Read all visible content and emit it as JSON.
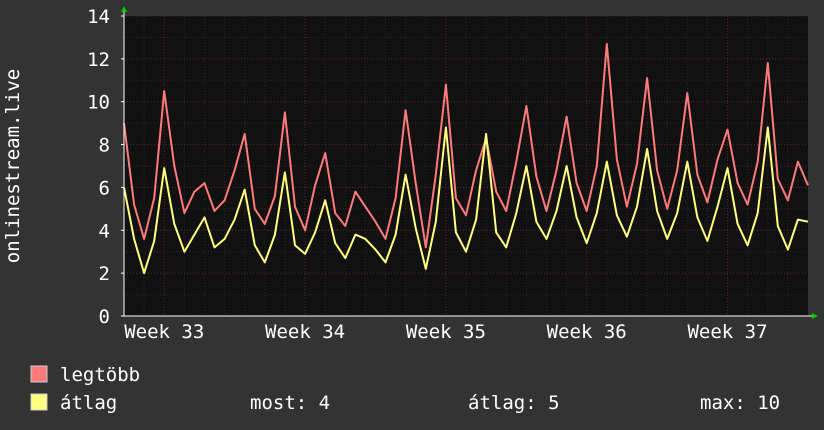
{
  "chart_data": {
    "type": "line",
    "ylabel": "onlinestream.live",
    "ylim": [
      0,
      14
    ],
    "yticks": [
      0,
      2,
      4,
      6,
      8,
      10,
      12,
      14
    ],
    "xlim": [
      0,
      34
    ],
    "xticks": [
      {
        "label": "Week 33",
        "x": 2
      },
      {
        "label": "Week 34",
        "x": 9
      },
      {
        "label": "Week 35",
        "x": 16
      },
      {
        "label": "Week 36",
        "x": 23
      },
      {
        "label": "Week 37",
        "x": 30
      }
    ],
    "grid": true,
    "legend_placement": "bottom-left",
    "colors": {
      "background": "#333333",
      "plot_background": "#111111",
      "grid_major": "#5a2a2a",
      "grid_minor": "#3a2424",
      "axis": "#ffffff",
      "arrow": "#00cc00"
    },
    "series": [
      {
        "name": "legtöbb",
        "color": "#ff7b7b",
        "x": [
          0,
          0.5,
          1,
          1.5,
          2,
          2.5,
          3,
          3.5,
          4,
          4.5,
          5,
          5.5,
          6,
          6.5,
          7,
          7.5,
          8,
          8.5,
          9,
          9.5,
          10,
          10.5,
          11,
          11.5,
          12,
          12.5,
          13,
          13.5,
          14,
          14.5,
          15,
          15.5,
          16,
          16.5,
          17,
          17.5,
          18,
          18.5,
          19,
          19.5,
          20,
          20.5,
          21,
          21.5,
          22,
          22.5,
          23,
          23.5,
          24,
          24.5,
          25,
          25.5,
          26,
          26.5,
          27,
          27.5,
          28,
          28.5,
          29,
          29.5,
          30,
          30.5,
          31,
          31.5,
          32,
          32.5,
          33,
          33.5,
          34
        ],
        "values": [
          9.0,
          5.2,
          3.6,
          5.5,
          10.5,
          7.0,
          4.8,
          5.8,
          6.2,
          4.9,
          5.4,
          6.8,
          8.5,
          5.0,
          4.3,
          5.6,
          9.5,
          5.1,
          4.0,
          6.1,
          7.6,
          4.8,
          4.2,
          5.8,
          5.1,
          4.4,
          3.6,
          5.5,
          9.6,
          6.2,
          3.2,
          6.6,
          10.8,
          5.5,
          4.7,
          6.8,
          8.3,
          5.8,
          4.9,
          7.2,
          9.8,
          6.5,
          4.9,
          6.8,
          9.3,
          6.2,
          4.9,
          7.0,
          12.7,
          7.3,
          5.1,
          7.1,
          11.1,
          6.8,
          5.0,
          6.8,
          10.4,
          6.6,
          5.3,
          7.3,
          8.7,
          6.2,
          5.2,
          7.2,
          11.8,
          6.4,
          5.4,
          7.2,
          6.1
        ]
      },
      {
        "name": "átlag",
        "color": "#ffff80",
        "x": [
          0,
          0.5,
          1,
          1.5,
          2,
          2.5,
          3,
          3.5,
          4,
          4.5,
          5,
          5.5,
          6,
          6.5,
          7,
          7.5,
          8,
          8.5,
          9,
          9.5,
          10,
          10.5,
          11,
          11.5,
          12,
          12.5,
          13,
          13.5,
          14,
          14.5,
          15,
          15.5,
          16,
          16.5,
          17,
          17.5,
          18,
          18.5,
          19,
          19.5,
          20,
          20.5,
          21,
          21.5,
          22,
          22.5,
          23,
          23.5,
          24,
          24.5,
          25,
          25.5,
          26,
          26.5,
          27,
          27.5,
          28,
          28.5,
          29,
          29.5,
          30,
          30.5,
          31,
          31.5,
          32,
          32.5,
          33,
          33.5,
          34
        ],
        "values": [
          6.0,
          3.6,
          2.0,
          3.5,
          6.9,
          4.3,
          3.0,
          3.8,
          4.6,
          3.2,
          3.6,
          4.5,
          5.9,
          3.3,
          2.5,
          3.8,
          6.7,
          3.3,
          2.9,
          3.9,
          5.4,
          3.4,
          2.7,
          3.8,
          3.6,
          3.1,
          2.5,
          3.8,
          6.6,
          4.1,
          2.2,
          4.4,
          8.8,
          3.9,
          3.0,
          4.5,
          8.5,
          3.9,
          3.2,
          4.8,
          7.0,
          4.4,
          3.6,
          4.9,
          7.0,
          4.6,
          3.4,
          4.8,
          7.2,
          4.7,
          3.7,
          5.1,
          7.8,
          4.9,
          3.6,
          4.8,
          7.2,
          4.6,
          3.5,
          5.1,
          6.9,
          4.3,
          3.3,
          4.8,
          8.8,
          4.2,
          3.1,
          4.5,
          4.4
        ]
      }
    ],
    "legend": [
      {
        "label": "legtöbb",
        "color": "#ff7b7b"
      },
      {
        "label": "átlag",
        "color": "#ffff80"
      }
    ],
    "stats": {
      "most": "most: 4",
      "atlag": "átlag: 5",
      "max": "max: 10"
    }
  }
}
